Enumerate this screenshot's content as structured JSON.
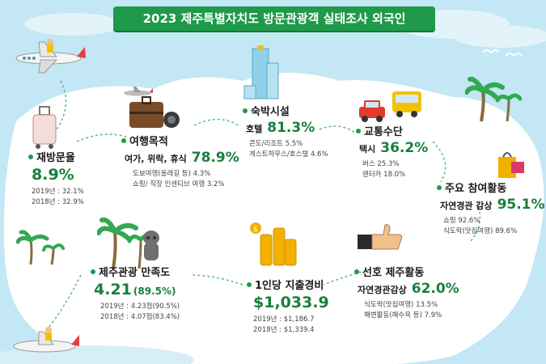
{
  "title": "2023 제주특별자치도 방문관광객 실태조사 외국인",
  "revisit": {
    "title": "재방문율",
    "value": "8.9%",
    "subs": [
      "2019년 : 32.1%",
      "2018년 : 32.9%"
    ]
  },
  "purpose": {
    "title": "여행목적",
    "main_label": "여가, 위락, 휴식",
    "main_value": "78.9%",
    "subs": [
      "도보여행(올레길 등) 4.3%",
      "쇼핑/ 직장 인센티브 여행 3.2%"
    ]
  },
  "lodging": {
    "title": "숙박시설",
    "main_label": "호텔",
    "main_value": "81.3%",
    "subs": [
      "콘도/리조트 5.5%",
      "게스트하우스/호스텔 4.6%"
    ]
  },
  "transport": {
    "title": "교통수단",
    "main_label": "택시",
    "main_value": "36.2%",
    "subs": [
      "버스 25.3%",
      "렌터카 18.0%"
    ]
  },
  "activity": {
    "title": "주요 참여활동",
    "main_label": "자연경관 감상",
    "main_value": "95.1%",
    "subs": [
      "쇼핑 92.6%",
      "식도락(맛집여행) 89.6%"
    ]
  },
  "satisfaction": {
    "title": "제주관광 만족도",
    "value": "4.21",
    "value_pct": "(89.5%)",
    "subs": [
      "2019년 : 4.23점(90.5%)",
      "2018년 : 4.07점(83.4%)"
    ]
  },
  "spending": {
    "title": "1인당 지출경비",
    "value": "$1,033.9",
    "subs": [
      "2019년 : $1,186.7",
      "2018년 : $1,339.4"
    ]
  },
  "preferred": {
    "title": "선호 제주활동",
    "main_label": "자연경관감상",
    "main_value": "62.0%",
    "subs": [
      "식도락(맛집여행) 13.5%",
      "해변활동(해수욕 등) 7.9%"
    ]
  },
  "icons": {
    "plane": "airplane-icon",
    "luggage": "luggage-icon",
    "suitcase": "suitcase-icon",
    "hotel": "hotel-building-icon",
    "bus": "bus-icon",
    "car": "car-icon",
    "palm": "palm-tree-icon",
    "dolharubang": "stone-statue-icon",
    "coins": "coins-icon",
    "thumb": "thumbs-up-icon",
    "bag": "shopping-bag-icon"
  },
  "colors": {
    "accent": "#1f9a4a",
    "value": "#1a7f3c",
    "sky": "#bfe6f3",
    "land": "#ffffff"
  }
}
